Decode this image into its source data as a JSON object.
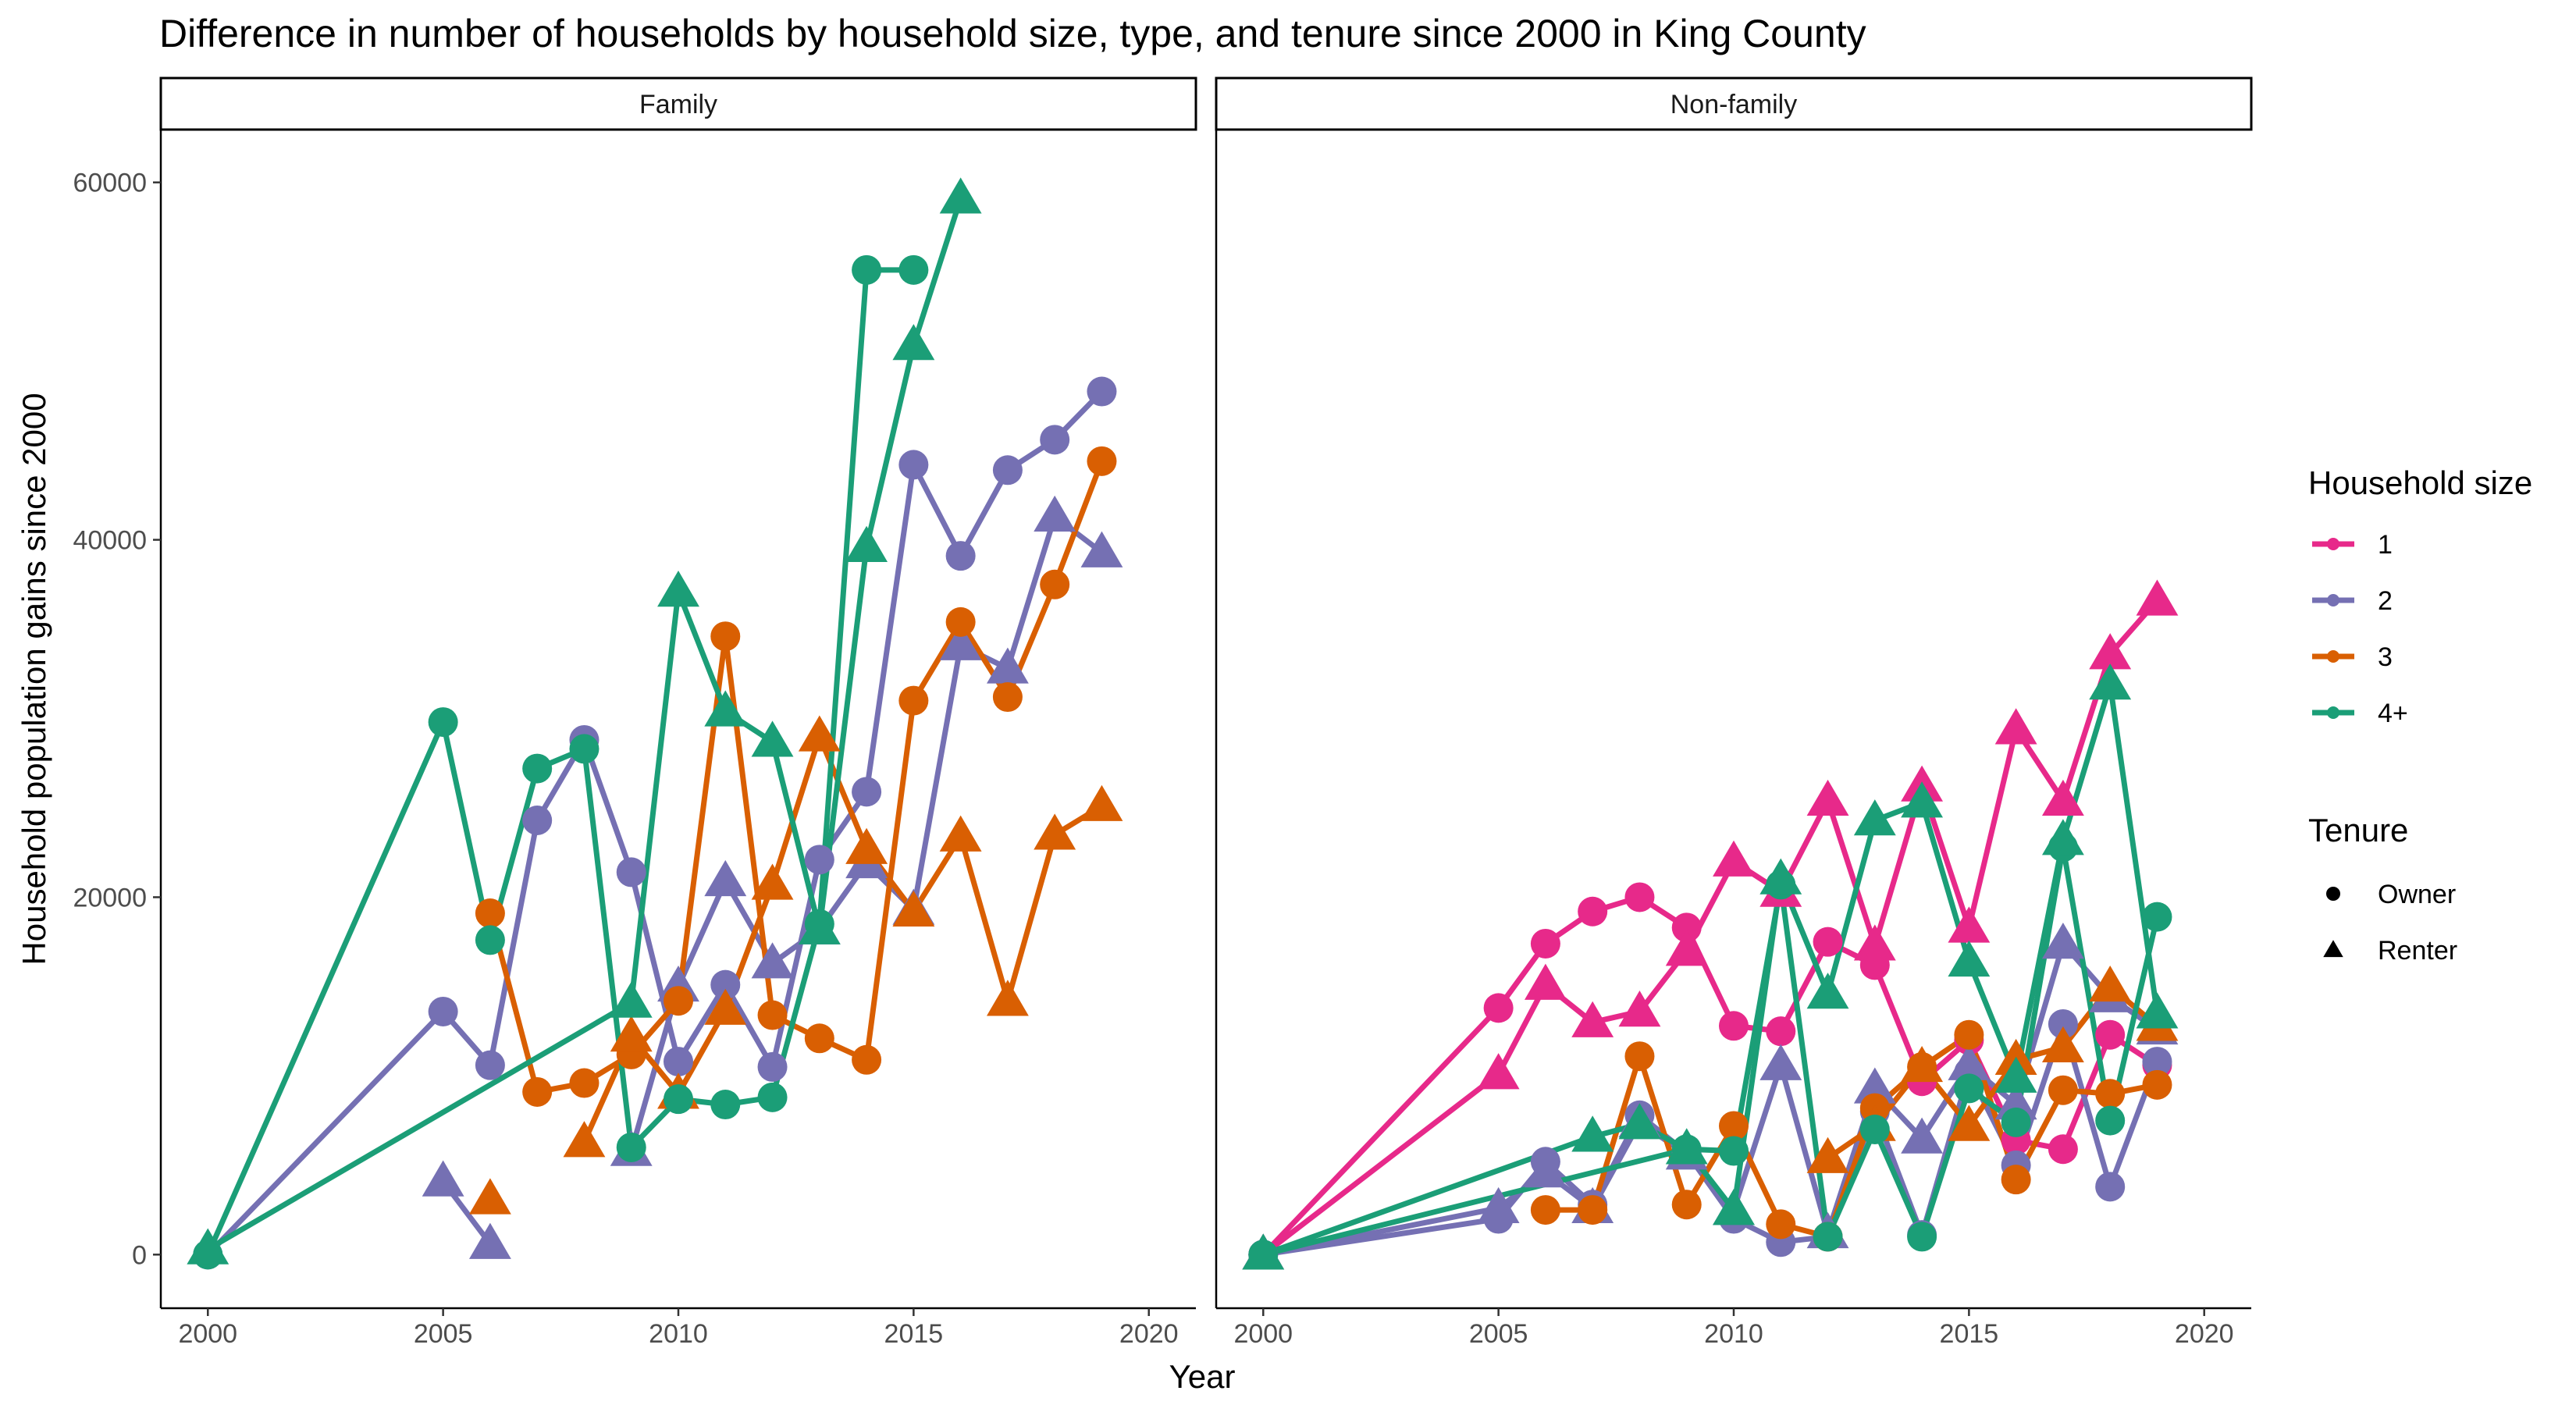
{
  "title": "Difference in number of households by household size, type, and tenure since 2000 in King County",
  "chart_data": {
    "type": "line",
    "title": "Difference in number of households by household size, type, and tenure since 2000 in King County",
    "xlabel": "Year",
    "ylabel": "Household population gains since 2000",
    "xlim": [
      1999,
      2021
    ],
    "ylim": [
      -3000,
      63000
    ],
    "x_ticks": [
      2000,
      2005,
      2010,
      2015,
      2020
    ],
    "x_tick_labels": [
      "2000",
      "2005",
      "2010",
      "2015",
      "2020"
    ],
    "y_ticks": [
      0,
      20000,
      40000,
      60000
    ],
    "y_tick_labels": [
      "0",
      "20000",
      "40000",
      "60000"
    ],
    "grid": false,
    "legend_placement": "right",
    "legend": {
      "size_title": "Household size",
      "sizes": [
        {
          "label": "1",
          "color": "#e7298a"
        },
        {
          "label": "2",
          "color": "#7570b3"
        },
        {
          "label": "3",
          "color": "#d95f02"
        },
        {
          "label": "4+",
          "color": "#1b9e77"
        }
      ],
      "tenure_title": "Tenure",
      "tenures": [
        {
          "label": "Owner",
          "shape": "circle"
        },
        {
          "label": "Renter",
          "shape": "triangle"
        }
      ]
    },
    "panels": [
      {
        "label": "Family",
        "series": [
          {
            "size": "2",
            "tenure": "Owner",
            "x": [
              2000,
              2005,
              2006,
              2007,
              2008,
              2009,
              2010,
              2011,
              2012,
              2013,
              2014,
              2015,
              2016,
              2017,
              2018,
              2019
            ],
            "y": [
              0,
              13600,
              10600,
              24300,
              28800,
              21400,
              10800,
              15100,
              10500,
              22100,
              25900,
              44200,
              39100,
              43900,
              45600,
              48300
            ]
          },
          {
            "size": "2",
            "tenure": "Renter",
            "x": [
              2005,
              2006
            ],
            "y": [
              4100,
              600
            ]
          },
          {
            "size": "2",
            "tenure": "Renter",
            "x": [
              2009,
              2010,
              2011,
              2012,
              2013,
              2014,
              2015,
              2016,
              2017,
              2018,
              2019
            ],
            "y": [
              5800,
              15000,
              20900,
              16300,
              18200,
              21900,
              19300,
              34100,
              32800,
              41300,
              39300
            ]
          },
          {
            "size": "3",
            "tenure": "Owner",
            "x": [
              2006,
              2007,
              2008,
              2009,
              2010,
              2011,
              2012,
              2013,
              2014,
              2015,
              2016,
              2017,
              2018,
              2019
            ],
            "y": [
              19100,
              9100,
              9600,
              11200,
              14200,
              34600,
              13400,
              12100,
              10900,
              31000,
              35400,
              31200,
              37500,
              44400
            ]
          },
          {
            "size": "3",
            "tenure": "Renter",
            "x": [
              2006
            ],
            "y": [
              3100
            ]
          },
          {
            "size": "3",
            "tenure": "Renter",
            "x": [
              2008,
              2009,
              2010,
              2011,
              2012,
              2013,
              2014,
              2015,
              2016,
              2017,
              2018,
              2019
            ],
            "y": [
              6300,
              12200,
              9000,
              13700,
              20700,
              29000,
              22700,
              19200,
              23400,
              14200,
              23500,
              25100
            ]
          },
          {
            "size": "4+",
            "tenure": "Owner",
            "x": [
              2000,
              2005,
              2006,
              2007,
              2008,
              2009,
              2010,
              2011,
              2012,
              2013,
              2014,
              2015
            ],
            "y": [
              0,
              29800,
              17600,
              27200,
              28300,
              6000,
              8700,
              8400,
              8800,
              18500,
              55100,
              55100
            ]
          },
          {
            "size": "4+",
            "tenure": "Renter",
            "x": [
              2000,
              2009,
              2010,
              2011,
              2012,
              2013,
              2014,
              2015,
              2016
            ],
            "y": [
              300,
              14100,
              37100,
              30400,
              28700,
              18200,
              39600,
              50900,
              59100
            ]
          }
        ]
      },
      {
        "label": "Non-family",
        "series": [
          {
            "size": "1",
            "tenure": "Owner",
            "x": [
              2000,
              2005,
              2006,
              2007,
              2008,
              2009,
              2010,
              2011,
              2012,
              2013,
              2014,
              2015,
              2016,
              2017,
              2018,
              2019
            ],
            "y": [
              0,
              13800,
              17400,
              19200,
              20000,
              18300,
              12800,
              12500,
              17500,
              16200,
              9700,
              12000,
              6400,
              5900,
              12300,
              10600
            ]
          },
          {
            "size": "1",
            "tenure": "Renter",
            "x": [
              2000,
              2005,
              2006,
              2007,
              2008,
              2009,
              2010,
              2011,
              2012,
              2013,
              2014,
              2015,
              2016,
              2017,
              2018,
              2019
            ],
            "y": [
              0,
              10100,
              15100,
              13000,
              13600,
              17000,
              22000,
              20300,
              25400,
              17300,
              26200,
              18300,
              29400,
              25400,
              33600,
              36600
            ]
          },
          {
            "size": "2",
            "tenure": "Owner",
            "x": [
              2000,
              2005,
              2006,
              2007,
              2008,
              2009,
              2010,
              2011,
              2012,
              2013,
              2014,
              2015,
              2016,
              2017,
              2018,
              2019
            ],
            "y": [
              0,
              2000,
              5200,
              2800,
              7800,
              5700,
              2000,
              700,
              1000,
              8000,
              1100,
              10200,
              5000,
              12900,
              3800,
              10800
            ]
          },
          {
            "size": "2",
            "tenure": "Renter",
            "x": [
              2000,
              2005,
              2006,
              2007,
              2008,
              2009,
              2010,
              2011,
              2012,
              2013,
              2014,
              2015,
              2016,
              2017,
              2018,
              2019
            ],
            "y": [
              0,
              2600,
              4600,
              2600,
              7400,
              5600,
              2500,
              10600,
              1200,
              9300,
              6500,
              10600,
              8400,
              17400,
              14400,
              12600
            ]
          },
          {
            "size": "3",
            "tenure": "Owner",
            "x": [
              2006,
              2007,
              2008,
              2009,
              2010,
              2011,
              2012,
              2013,
              2014,
              2015,
              2016,
              2017,
              2018,
              2019
            ],
            "y": [
              2500,
              2500,
              11100,
              2800,
              7200,
              1700,
              1000,
              8200,
              10500,
              12300,
              4200,
              9200,
              9000,
              9500
            ]
          },
          {
            "size": "3",
            "tenure": "Renter",
            "x": [
              2012,
              2013,
              2014,
              2015,
              2016,
              2017,
              2018,
              2019
            ],
            "y": [
              5400,
              7200,
              10500,
              7200,
              10900,
              11600,
              15000,
              12800
            ]
          },
          {
            "size": "4+",
            "tenure": "Owner",
            "x": [
              2000,
              2009,
              2010,
              2011,
              2012,
              2013,
              2014,
              2015,
              2016,
              2017,
              2018,
              2019
            ],
            "y": [
              0,
              5900,
              5800,
              20700,
              1000,
              7000,
              1000,
              9300,
              7400,
              22800,
              7500,
              18900
            ]
          },
          {
            "size": "4+",
            "tenure": "Renter",
            "x": [
              2000,
              2007,
              2008,
              2009,
              2010,
              2011,
              2012,
              2013,
              2014,
              2015,
              2016,
              2017,
              2018,
              2019
            ],
            "y": [
              0,
              6600,
              7300,
              5900,
              2500,
              21000,
              14600,
              24300,
              25300,
              16400,
              9900,
              23200,
              31900,
              13500
            ]
          }
        ]
      }
    ]
  }
}
